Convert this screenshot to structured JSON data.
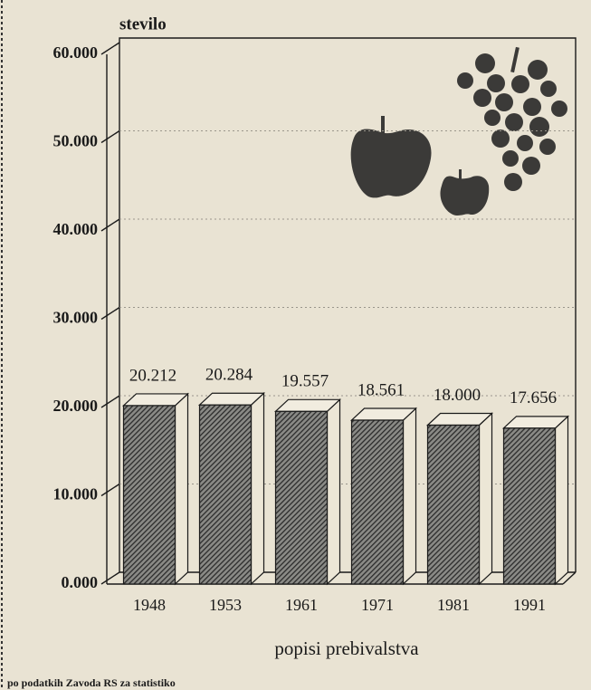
{
  "chart_data": {
    "type": "bar3d",
    "y_label": "stevilo",
    "x_label": "popisi prebivalstva",
    "source": "po podatkih Zavoda RS za statistiko",
    "categories": [
      "1948",
      "1953",
      "1961",
      "1971",
      "1981",
      "1991"
    ],
    "values": [
      20212,
      20284,
      19557,
      18561,
      18000,
      17656
    ],
    "value_labels": [
      "20.212",
      "20.284",
      "19.557",
      "18.561",
      "18.000",
      "17.656"
    ],
    "color": "#3a3a3a",
    "ylim": [
      0,
      60000
    ],
    "yticks": [
      {
        "value": 0,
        "label": "0.000"
      },
      {
        "value": 10000,
        "label": "10.000"
      },
      {
        "value": 20000,
        "label": "20.000"
      },
      {
        "value": 30000,
        "label": "30.000"
      },
      {
        "value": 40000,
        "label": "40.000"
      },
      {
        "value": 50000,
        "label": "50.000"
      },
      {
        "value": 60000,
        "label": "60.000"
      }
    ],
    "grid": true
  }
}
